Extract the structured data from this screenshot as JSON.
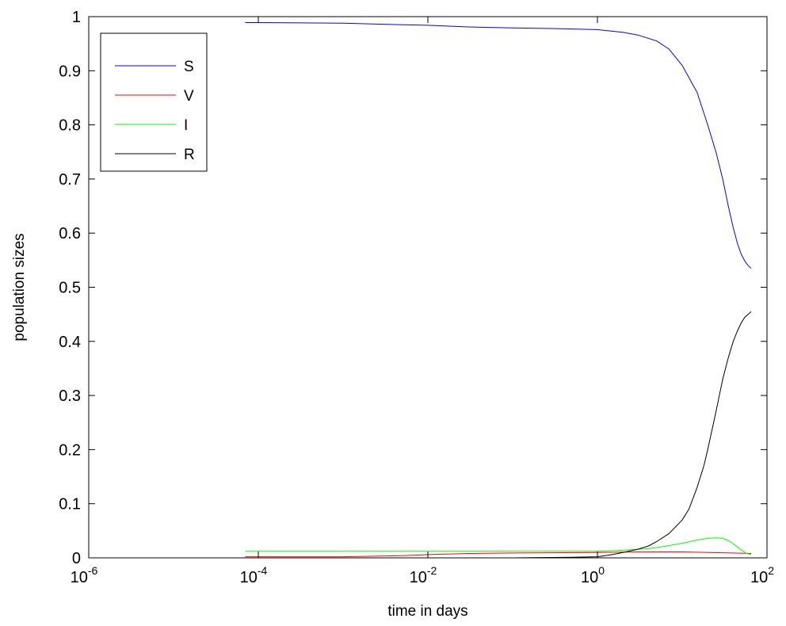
{
  "chart_data": {
    "type": "line",
    "xscale": "log",
    "xlabel": "time in days",
    "ylabel": "population sizes",
    "xlim": [
      1e-06,
      100
    ],
    "ylim": [
      0,
      1
    ],
    "x_ticks": [
      {
        "value": 1e-06,
        "base": "10",
        "exp": "-6"
      },
      {
        "value": 0.0001,
        "base": "10",
        "exp": "-4"
      },
      {
        "value": 0.01,
        "base": "10",
        "exp": "-2"
      },
      {
        "value": 1,
        "base": "10",
        "exp": "0"
      },
      {
        "value": 100,
        "base": "10",
        "exp": "2"
      }
    ],
    "y_ticks": [
      {
        "value": 0,
        "label": "0"
      },
      {
        "value": 0.1,
        "label": "0.1"
      },
      {
        "value": 0.2,
        "label": "0.2"
      },
      {
        "value": 0.3,
        "label": "0.3"
      },
      {
        "value": 0.4,
        "label": "0.4"
      },
      {
        "value": 0.5,
        "label": "0.5"
      },
      {
        "value": 0.6,
        "label": "0.6"
      },
      {
        "value": 0.7,
        "label": "0.7"
      },
      {
        "value": 0.8,
        "label": "0.8"
      },
      {
        "value": 0.9,
        "label": "0.9"
      },
      {
        "value": 1,
        "label": "1"
      }
    ],
    "grid": false,
    "legend_position": "top-left",
    "series": [
      {
        "name": "S",
        "color": "#0000ff",
        "points": [
          [
            7e-05,
            0.989
          ],
          [
            0.0001,
            0.989
          ],
          [
            0.001,
            0.988
          ],
          [
            0.005,
            0.985
          ],
          [
            0.01,
            0.984
          ],
          [
            0.03,
            0.981
          ],
          [
            0.1,
            0.979
          ],
          [
            0.3,
            0.978
          ],
          [
            1,
            0.976
          ],
          [
            2,
            0.971
          ],
          [
            3,
            0.966
          ],
          [
            5,
            0.955
          ],
          [
            7,
            0.94
          ],
          [
            10,
            0.91
          ],
          [
            15,
            0.86
          ],
          [
            20,
            0.8
          ],
          [
            25,
            0.75
          ],
          [
            30,
            0.7
          ],
          [
            35,
            0.65
          ],
          [
            40,
            0.61
          ],
          [
            45,
            0.58
          ],
          [
            50,
            0.56
          ],
          [
            55,
            0.548
          ],
          [
            60,
            0.54
          ],
          [
            65,
            0.535
          ]
        ]
      },
      {
        "name": "V",
        "color": "#ff0000",
        "points": [
          [
            7e-05,
            0.002
          ],
          [
            0.001,
            0.002
          ],
          [
            0.005,
            0.004
          ],
          [
            0.01,
            0.006
          ],
          [
            0.03,
            0.008
          ],
          [
            0.1,
            0.009
          ],
          [
            1,
            0.01
          ],
          [
            3,
            0.011
          ],
          [
            10,
            0.011
          ],
          [
            20,
            0.01
          ],
          [
            40,
            0.009
          ],
          [
            65,
            0.008
          ]
        ]
      },
      {
        "name": "I",
        "color": "#00ff00",
        "points": [
          [
            7e-05,
            0.012
          ],
          [
            0.1,
            0.012
          ],
          [
            1,
            0.012
          ],
          [
            2,
            0.014
          ],
          [
            4,
            0.017
          ],
          [
            6,
            0.021
          ],
          [
            10,
            0.027
          ],
          [
            15,
            0.033
          ],
          [
            20,
            0.036
          ],
          [
            25,
            0.037
          ],
          [
            30,
            0.036
          ],
          [
            35,
            0.032
          ],
          [
            40,
            0.026
          ],
          [
            50,
            0.014
          ],
          [
            58,
            0.008
          ],
          [
            65,
            0.006
          ]
        ]
      },
      {
        "name": "R",
        "color": "#000000",
        "points": [
          [
            7e-05,
            0.0
          ],
          [
            0.1,
            0.0
          ],
          [
            0.5,
            0.001
          ],
          [
            1,
            0.002
          ],
          [
            1.5,
            0.006
          ],
          [
            2,
            0.01
          ],
          [
            3,
            0.016
          ],
          [
            4,
            0.022
          ],
          [
            5,
            0.03
          ],
          [
            7,
            0.045
          ],
          [
            10,
            0.07
          ],
          [
            12,
            0.09
          ],
          [
            15,
            0.13
          ],
          [
            18,
            0.17
          ],
          [
            20,
            0.2
          ],
          [
            25,
            0.27
          ],
          [
            30,
            0.33
          ],
          [
            35,
            0.37
          ],
          [
            40,
            0.4
          ],
          [
            45,
            0.42
          ],
          [
            50,
            0.435
          ],
          [
            55,
            0.445
          ],
          [
            60,
            0.45
          ],
          [
            65,
            0.455
          ]
        ]
      }
    ]
  }
}
